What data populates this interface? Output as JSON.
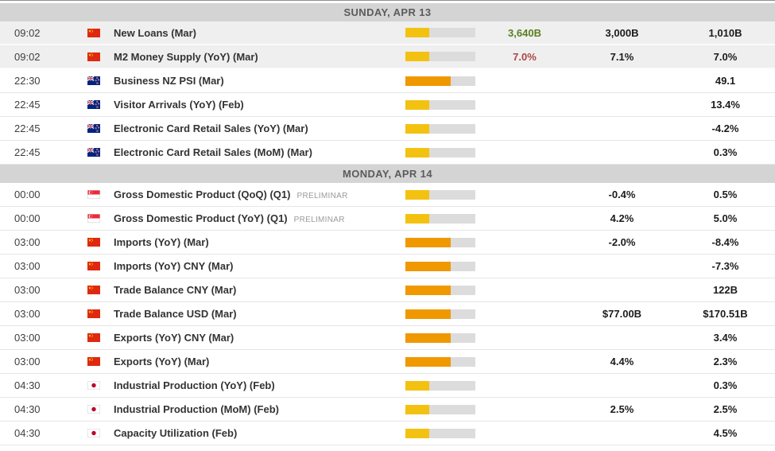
{
  "colors": {
    "importance_low": "#f3c211",
    "importance_medium": "#f09800",
    "actual_positive": "#59801e",
    "actual_negative": "#aa4643",
    "past_row_bg": "#efefef",
    "header_bg": "#d4d4d4"
  },
  "columns": {
    "time": "time",
    "flag": "country-flag",
    "event": "event-name",
    "importance": "importance-bar",
    "actual": "actual",
    "forecast": "forecast",
    "previous": "previous"
  },
  "sections": [
    {
      "date_label": "SUNDAY, APR 13",
      "rows": [
        {
          "time": "09:02",
          "country": "China",
          "flag": "china",
          "event": "New Loans (Mar)",
          "note": "",
          "importance": "low",
          "status": "past",
          "actual": "3,640B",
          "actual_tone": "positive",
          "forecast": "3,000B",
          "previous": "1,010B"
        },
        {
          "time": "09:02",
          "country": "China",
          "flag": "china",
          "event": "M2 Money Supply (YoY) (Mar)",
          "note": "",
          "importance": "low",
          "status": "past",
          "actual": "7.0%",
          "actual_tone": "negative",
          "forecast": "7.1%",
          "previous": "7.0%"
        },
        {
          "time": "22:30",
          "country": "New Zealand",
          "flag": "nz",
          "event": "Business NZ PSI (Mar)",
          "note": "",
          "importance": "medium",
          "status": "upcoming",
          "actual": "",
          "actual_tone": "",
          "forecast": "",
          "previous": "49.1"
        },
        {
          "time": "22:45",
          "country": "New Zealand",
          "flag": "nz",
          "event": "Visitor Arrivals (YoY) (Feb)",
          "note": "",
          "importance": "low",
          "status": "upcoming",
          "actual": "",
          "actual_tone": "",
          "forecast": "",
          "previous": "13.4%"
        },
        {
          "time": "22:45",
          "country": "New Zealand",
          "flag": "nz",
          "event": "Electronic Card Retail Sales (YoY) (Mar)",
          "note": "",
          "importance": "low",
          "status": "upcoming",
          "actual": "",
          "actual_tone": "",
          "forecast": "",
          "previous": "-4.2%"
        },
        {
          "time": "22:45",
          "country": "New Zealand",
          "flag": "nz",
          "event": "Electronic Card Retail Sales (MoM) (Mar)",
          "note": "",
          "importance": "low",
          "status": "upcoming",
          "actual": "",
          "actual_tone": "",
          "forecast": "",
          "previous": "0.3%"
        }
      ]
    },
    {
      "date_label": "MONDAY, APR 14",
      "rows": [
        {
          "time": "00:00",
          "country": "Singapore",
          "flag": "singapore",
          "event": "Gross Domestic Product (QoQ) (Q1)",
          "note": "PRELIMINAR",
          "importance": "low",
          "status": "upcoming",
          "actual": "",
          "actual_tone": "",
          "forecast": "-0.4%",
          "previous": "0.5%"
        },
        {
          "time": "00:00",
          "country": "Singapore",
          "flag": "singapore",
          "event": "Gross Domestic Product (YoY) (Q1)",
          "note": "PRELIMINAR",
          "importance": "low",
          "status": "upcoming",
          "actual": "",
          "actual_tone": "",
          "forecast": "4.2%",
          "previous": "5.0%"
        },
        {
          "time": "03:00",
          "country": "China",
          "flag": "china",
          "event": "Imports (YoY) (Mar)",
          "note": "",
          "importance": "medium",
          "status": "upcoming",
          "actual": "",
          "actual_tone": "",
          "forecast": "-2.0%",
          "previous": "-8.4%"
        },
        {
          "time": "03:00",
          "country": "China",
          "flag": "china",
          "event": "Imports (YoY) CNY (Mar)",
          "note": "",
          "importance": "medium",
          "status": "upcoming",
          "actual": "",
          "actual_tone": "",
          "forecast": "",
          "previous": "-7.3%"
        },
        {
          "time": "03:00",
          "country": "China",
          "flag": "china",
          "event": "Trade Balance CNY (Mar)",
          "note": "",
          "importance": "medium",
          "status": "upcoming",
          "actual": "",
          "actual_tone": "",
          "forecast": "",
          "previous": "122B"
        },
        {
          "time": "03:00",
          "country": "China",
          "flag": "china",
          "event": "Trade Balance USD (Mar)",
          "note": "",
          "importance": "medium",
          "status": "upcoming",
          "actual": "",
          "actual_tone": "",
          "forecast": "$77.00B",
          "previous": "$170.51B"
        },
        {
          "time": "03:00",
          "country": "China",
          "flag": "china",
          "event": "Exports (YoY) CNY (Mar)",
          "note": "",
          "importance": "medium",
          "status": "upcoming",
          "actual": "",
          "actual_tone": "",
          "forecast": "",
          "previous": "3.4%"
        },
        {
          "time": "03:00",
          "country": "China",
          "flag": "china",
          "event": "Exports (YoY) (Mar)",
          "note": "",
          "importance": "medium",
          "status": "upcoming",
          "actual": "",
          "actual_tone": "",
          "forecast": "4.4%",
          "previous": "2.3%"
        },
        {
          "time": "04:30",
          "country": "Japan",
          "flag": "japan",
          "event": "Industrial Production (YoY) (Feb)",
          "note": "",
          "importance": "low",
          "status": "upcoming",
          "actual": "",
          "actual_tone": "",
          "forecast": "",
          "previous": "0.3%"
        },
        {
          "time": "04:30",
          "country": "Japan",
          "flag": "japan",
          "event": "Industrial Production (MoM) (Feb)",
          "note": "",
          "importance": "low",
          "status": "upcoming",
          "actual": "",
          "actual_tone": "",
          "forecast": "2.5%",
          "previous": "2.5%"
        },
        {
          "time": "04:30",
          "country": "Japan",
          "flag": "japan",
          "event": "Capacity Utilization (Feb)",
          "note": "",
          "importance": "low",
          "status": "upcoming",
          "actual": "",
          "actual_tone": "",
          "forecast": "",
          "previous": "4.5%"
        }
      ]
    }
  ]
}
